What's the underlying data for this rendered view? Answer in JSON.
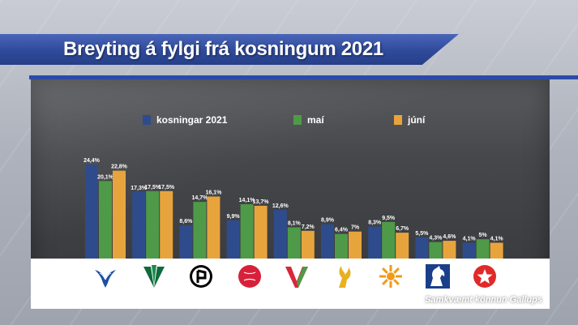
{
  "title": "Breyting á fylgi frá kosningum 2021",
  "source_note": "Samkvæmt könnun Gallups",
  "legend": [
    {
      "label": "kosningar 2021",
      "color": "#2e4c8c"
    },
    {
      "label": "maí",
      "color": "#4f9a48"
    },
    {
      "label": "júní",
      "color": "#e8a43c"
    }
  ],
  "logos": [
    {
      "icon": "falcon-icon",
      "party": "D"
    },
    {
      "icon": "clover-leaves-icon",
      "party": "B"
    },
    {
      "icon": "pirate-flag-icon",
      "party": "P"
    },
    {
      "icon": "rose-icon",
      "party": "S"
    },
    {
      "icon": "v-icon",
      "party": "V"
    },
    {
      "icon": "fist-flame-icon",
      "party": "F"
    },
    {
      "icon": "sun-icon",
      "party": "C"
    },
    {
      "icon": "horse-icon",
      "party": "M"
    },
    {
      "icon": "star-person-icon",
      "party": "J"
    }
  ],
  "chart_data": {
    "type": "bar",
    "title": "Breyting á fylgi frá kosningum 2021",
    "categories": [
      "falcon-icon",
      "clover-leaves-icon",
      "pirate-flag-icon",
      "rose-icon",
      "v-icon",
      "fist-flame-icon",
      "sun-icon",
      "horse-icon",
      "star-person-icon"
    ],
    "series": [
      {
        "name": "kosningar 2021",
        "color": "#2e4c8c",
        "values": [
          24.4,
          17.3,
          8.6,
          9.9,
          12.6,
          8.9,
          8.3,
          5.5,
          4.1
        ],
        "labels": [
          "24,4%",
          "17,3%",
          "8,6%",
          "9,9%",
          "12,6%",
          "8,9%",
          "8,3%",
          "5,5%",
          "4,1%"
        ]
      },
      {
        "name": "maí",
        "color": "#4f9a48",
        "values": [
          20.1,
          17.5,
          14.7,
          14.1,
          8.1,
          6.4,
          9.5,
          4.3,
          5
        ],
        "labels": [
          "20,1%",
          "17,5%",
          "14,7%",
          "14,1%",
          "8,1%",
          "6,4%",
          "9,5%",
          "4,3%",
          "5%"
        ]
      },
      {
        "name": "júní",
        "color": "#e8a43c",
        "values": [
          22.8,
          17.5,
          16.1,
          13.7,
          7.2,
          7,
          6.7,
          4.6,
          4.1
        ],
        "labels": [
          "22,8%",
          "17,5%",
          "16,1%",
          "13,7%",
          "7,2%",
          "7%",
          "6,7%",
          "4,6%",
          "4,1%"
        ]
      }
    ],
    "ylim": [
      0,
      25
    ],
    "grid": false,
    "legend_position": "top"
  }
}
